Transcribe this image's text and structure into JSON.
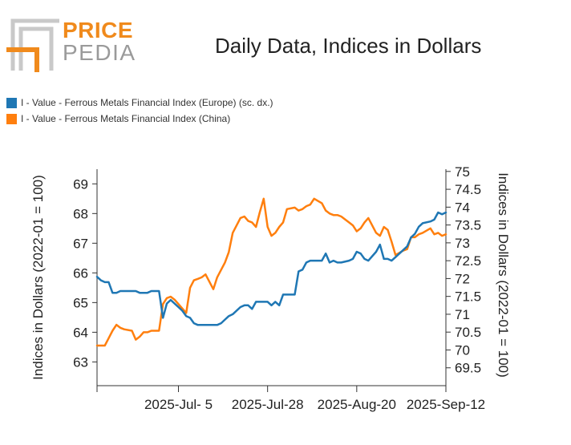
{
  "logo": {
    "line1": "PRICE",
    "line2": "PEDIA"
  },
  "colors": {
    "europe": "#1f77b4",
    "china": "#ff7f0e",
    "logo_orange": "#f08a1c",
    "logo_gray": "#a8a8a8"
  },
  "chart_data": {
    "type": "line",
    "title": "Daily Data, Indices in Dollars",
    "ylabel_left": "Indices in Dollars (2022-01 = 100)",
    "ylabel_right": "Indices in Dollars (2022-01 = 100)",
    "y_left_ticks": [
      "63",
      "64",
      "65",
      "66",
      "67",
      "68",
      "69"
    ],
    "y_right_ticks": [
      "69.5",
      "70",
      "70.5",
      "71",
      "71.5",
      "72",
      "72.5",
      "73",
      "73.5",
      "74",
      "74.5",
      "75"
    ],
    "ylim_left": [
      62.2,
      69.9
    ],
    "ylim_right": [
      69.0,
      75.4
    ],
    "x_ticks": [
      {
        "label": "2025-Jul- 5",
        "date": "2025-07-05"
      },
      {
        "label": "2025-Jul-28",
        "date": "2025-07-28"
      },
      {
        "label": "2025-Aug-20",
        "date": "2025-08-20"
      },
      {
        "label": "2025-Sep-12",
        "date": "2025-09-12"
      }
    ],
    "xlim": [
      "2025-06-14",
      "2025-09-12"
    ],
    "series": [
      {
        "name": "I - Value - Ferrous Metals Financial Index (Europe) (sc. dx.)",
        "axis": "right",
        "x": [
          "2025-06-14",
          "2025-06-15",
          "2025-06-16",
          "2025-06-17",
          "2025-06-18",
          "2025-06-19",
          "2025-06-20",
          "2025-06-21",
          "2025-06-23",
          "2025-06-24",
          "2025-06-25",
          "2025-06-26",
          "2025-06-27",
          "2025-06-28",
          "2025-06-30",
          "2025-07-01",
          "2025-07-02",
          "2025-07-03",
          "2025-07-04",
          "2025-07-05",
          "2025-07-06",
          "2025-07-07",
          "2025-07-08",
          "2025-07-09",
          "2025-07-10",
          "2025-07-11",
          "2025-07-12",
          "2025-07-14",
          "2025-07-15",
          "2025-07-16",
          "2025-07-17",
          "2025-07-18",
          "2025-07-19",
          "2025-07-21",
          "2025-07-22",
          "2025-07-23",
          "2025-07-24",
          "2025-07-25",
          "2025-07-26",
          "2025-07-28",
          "2025-07-29",
          "2025-07-30",
          "2025-07-31",
          "2025-08-01",
          "2025-08-02",
          "2025-08-04",
          "2025-08-05",
          "2025-08-06",
          "2025-08-07",
          "2025-08-08",
          "2025-08-09",
          "2025-08-11",
          "2025-08-12",
          "2025-08-13",
          "2025-08-14",
          "2025-08-15",
          "2025-08-16",
          "2025-08-18",
          "2025-08-19",
          "2025-08-20",
          "2025-08-21",
          "2025-08-22",
          "2025-08-23",
          "2025-08-25",
          "2025-08-26",
          "2025-08-27",
          "2025-08-28",
          "2025-08-29",
          "2025-08-30",
          "2025-09-01",
          "2025-09-02",
          "2025-09-03",
          "2025-09-04",
          "2025-09-05",
          "2025-09-06",
          "2025-09-08",
          "2025-09-09",
          "2025-09-10",
          "2025-09-11",
          "2025-09-12"
        ],
        "values": [
          72.05,
          71.95,
          71.9,
          71.9,
          71.6,
          71.6,
          71.65,
          71.65,
          71.65,
          71.65,
          71.6,
          71.6,
          71.6,
          71.65,
          71.65,
          70.9,
          71.3,
          71.4,
          71.3,
          71.2,
          71.1,
          70.95,
          70.9,
          70.75,
          70.7,
          70.7,
          70.7,
          70.7,
          70.7,
          70.75,
          70.85,
          70.95,
          71.0,
          71.2,
          71.25,
          71.25,
          71.15,
          71.35,
          71.35,
          71.35,
          71.25,
          71.35,
          71.25,
          71.55,
          71.55,
          71.55,
          72.2,
          72.25,
          72.45,
          72.5,
          72.5,
          72.5,
          72.7,
          72.45,
          72.5,
          72.45,
          72.45,
          72.5,
          72.55,
          72.75,
          72.7,
          72.55,
          72.5,
          72.75,
          72.95,
          72.55,
          72.55,
          72.5,
          72.6,
          72.8,
          72.9,
          73.15,
          73.25,
          73.45,
          73.55,
          73.6,
          73.65,
          73.85,
          73.8,
          73.85
        ]
      },
      {
        "name": "I - Value - Ferrous Metals Financial Index (China)",
        "axis": "left",
        "x": [
          "2025-06-14",
          "2025-06-16",
          "2025-06-17",
          "2025-06-18",
          "2025-06-19",
          "2025-06-20",
          "2025-06-21",
          "2025-06-23",
          "2025-06-24",
          "2025-06-25",
          "2025-06-26",
          "2025-06-27",
          "2025-06-28",
          "2025-06-30",
          "2025-07-01",
          "2025-07-02",
          "2025-07-03",
          "2025-07-04",
          "2025-07-05",
          "2025-07-07",
          "2025-07-08",
          "2025-07-09",
          "2025-07-10",
          "2025-07-11",
          "2025-07-12",
          "2025-07-14",
          "2025-07-15",
          "2025-07-16",
          "2025-07-17",
          "2025-07-18",
          "2025-07-19",
          "2025-07-21",
          "2025-07-22",
          "2025-07-23",
          "2025-07-24",
          "2025-07-25",
          "2025-07-26",
          "2025-07-27",
          "2025-07-28",
          "2025-07-29",
          "2025-07-30",
          "2025-07-31",
          "2025-08-01",
          "2025-08-02",
          "2025-08-04",
          "2025-08-05",
          "2025-08-06",
          "2025-08-07",
          "2025-08-08",
          "2025-08-09",
          "2025-08-11",
          "2025-08-12",
          "2025-08-13",
          "2025-08-14",
          "2025-08-15",
          "2025-08-16",
          "2025-08-18",
          "2025-08-19",
          "2025-08-20",
          "2025-08-21",
          "2025-08-22",
          "2025-08-23",
          "2025-08-25",
          "2025-08-26",
          "2025-08-27",
          "2025-08-28",
          "2025-08-29",
          "2025-08-30",
          "2025-09-01",
          "2025-09-02",
          "2025-09-03",
          "2025-09-04",
          "2025-09-05",
          "2025-09-06",
          "2025-09-08",
          "2025-09-09",
          "2025-09-10",
          "2025-09-11",
          "2025-09-12"
        ],
        "values": [
          63.55,
          63.55,
          63.8,
          64.05,
          64.25,
          64.15,
          64.1,
          64.05,
          63.75,
          63.85,
          64.0,
          64.0,
          64.05,
          64.05,
          64.95,
          65.15,
          65.2,
          65.1,
          64.95,
          64.65,
          65.5,
          65.75,
          65.8,
          65.85,
          65.95,
          65.45,
          65.85,
          66.1,
          66.35,
          66.7,
          67.35,
          67.85,
          67.9,
          67.75,
          67.7,
          67.55,
          68.05,
          68.5,
          67.55,
          67.25,
          67.35,
          67.55,
          67.7,
          68.15,
          68.2,
          68.1,
          68.15,
          68.25,
          68.3,
          68.5,
          68.35,
          68.1,
          68.0,
          67.95,
          67.95,
          67.9,
          67.7,
          67.6,
          67.4,
          67.5,
          67.7,
          67.85,
          67.35,
          67.25,
          67.55,
          67.45,
          67.05,
          66.6,
          66.75,
          66.8,
          67.2,
          67.2,
          67.3,
          67.35,
          67.5,
          67.3,
          67.35,
          67.25,
          67.3
        ]
      }
    ]
  }
}
